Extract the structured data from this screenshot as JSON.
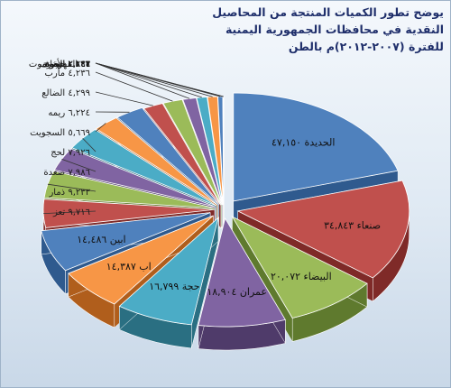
{
  "chart_data": {
    "type": "pie",
    "title_line1": "يوضح تطور الكميات المنتجة من المحاصيل النقدية في محافظات الجمهورية اليمنية",
    "title_line2": "للفترة (٢٠٠٧-٢٠١٢)م بالطن",
    "slices": [
      {
        "label": "الحديدة",
        "value": 47150,
        "display": "٤٧,١٥٠",
        "color": "#4f81bd",
        "side": "#2f5a8e"
      },
      {
        "label": "صنعاء",
        "value": 34843,
        "display": "٣٤,٨٤٣",
        "color": "#c0504d",
        "side": "#7f2a28"
      },
      {
        "label": "البيضاء",
        "value": 20072,
        "display": "٢٠,٠٧٢",
        "color": "#9bbb59",
        "side": "#5f7a2e"
      },
      {
        "label": "عمران",
        "value": 18904,
        "display": "١٨,٩٠٤",
        "color": "#8064a2",
        "side": "#4f3b6a"
      },
      {
        "label": "حجة",
        "value": 16799,
        "display": "١٦,٧٩٩",
        "color": "#4bacc6",
        "side": "#2a6f82"
      },
      {
        "label": "اب",
        "value": 14387,
        "display": "١٤,٣٨٧",
        "color": "#f79646",
        "side": "#b05e1c"
      },
      {
        "label": "ابين",
        "value": 14486,
        "display": "١٤,٤٨٦",
        "color": "#4f81bd",
        "side": "#2f5a8e"
      },
      {
        "label": "تعز",
        "value": 9716,
        "display": "٩,٧١٦",
        "color": "#c0504d",
        "side": "#7f2a28"
      },
      {
        "label": "ذمار",
        "value": 9233,
        "display": "٩,٢٣٣",
        "color": "#9bbb59",
        "side": "#5f7a2e"
      },
      {
        "label": "صعدة",
        "value": 7986,
        "display": "٧,٩٨٦",
        "color": "#8064a2",
        "side": "#4f3b6a"
      },
      {
        "label": "لحج",
        "value": 7926,
        "display": "٧,٩٢٦",
        "color": "#4bacc6",
        "side": "#2a6f82"
      },
      {
        "label": "السجويت",
        "value": 5669,
        "display": "٥,٦٦٩",
        "color": "#f79646",
        "side": "#b05e1c"
      },
      {
        "label": "ريمه",
        "value": 6224,
        "display": "٦,٢٢٤",
        "color": "#4f81bd",
        "side": "#2f5a8e"
      },
      {
        "label": "الضالع",
        "value": 4299,
        "display": "٤,٢٩٩",
        "color": "#c0504d",
        "side": "#7f2a28"
      },
      {
        "label": "مارب",
        "value": 4236,
        "display": "٤,٢٣٦",
        "color": "#9bbb59",
        "side": "#5f7a2e"
      },
      {
        "label": "الجوف",
        "value": 2893,
        "display": "٢,٨٩٣",
        "color": "#8064a2",
        "side": "#4f3b6a"
      },
      {
        "label": "حضرموت",
        "value": 2244,
        "display": "٢,٢٤٤",
        "color": "#4bacc6",
        "side": "#2a6f82"
      },
      {
        "label": "شبوه",
        "value": 2166,
        "display": "٢,١٦٦",
        "color": "#f79646",
        "side": "#b05e1c"
      },
      {
        "label": "الأمانة",
        "value": 1043,
        "display": "١,٠٤٣",
        "color": "#4f81bd",
        "side": "#2f5a8e"
      },
      {
        "label": "عدن",
        "value": 131,
        "display": "١٣١",
        "color": "#c0504d",
        "side": "#7f2a28"
      },
      {
        "label": "المهرة",
        "value": 41,
        "display": "٤١",
        "color": "#9bbb59",
        "side": "#5f7a2e"
      }
    ]
  }
}
